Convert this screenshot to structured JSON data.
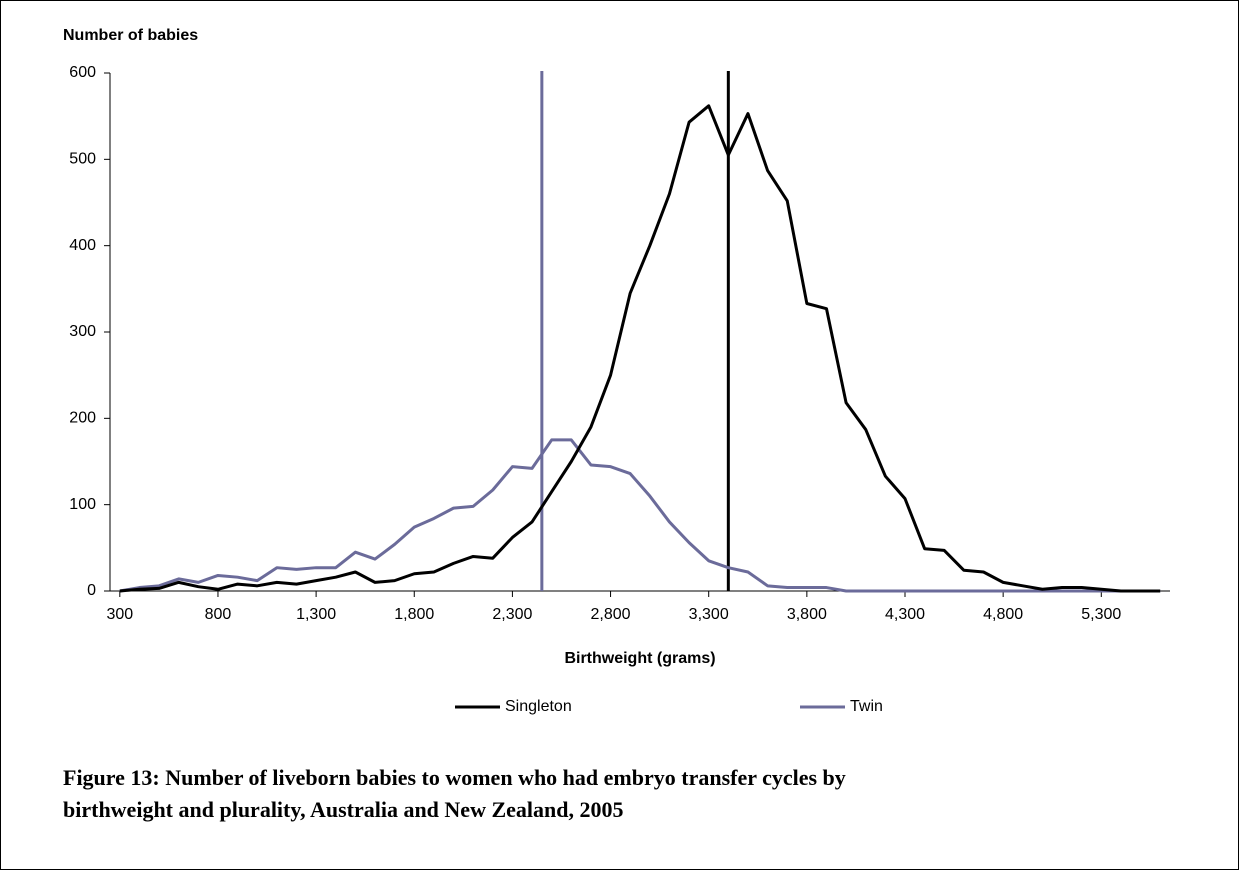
{
  "chart_data": {
    "type": "line",
    "y_label": "Number of babies",
    "x_label": "Birthweight (grams)",
    "caption": [
      "Figure 13: Number of liveborn babies to women who had embryo transfer cycles by",
      "birthweight and plurality, Australia and New Zealand, 2005"
    ],
    "x": [
      300,
      400,
      500,
      600,
      700,
      800,
      900,
      1000,
      1100,
      1200,
      1300,
      1400,
      1500,
      1600,
      1700,
      1800,
      1900,
      2000,
      2100,
      2200,
      2300,
      2400,
      2500,
      2600,
      2700,
      2800,
      2900,
      3000,
      3100,
      3200,
      3300,
      3400,
      3500,
      3600,
      3700,
      3800,
      3900,
      4000,
      4100,
      4200,
      4300,
      4400,
      4500,
      4600,
      4700,
      4800,
      4900,
      5000,
      5100,
      5200,
      5300,
      5400,
      5500,
      5600
    ],
    "series": [
      {
        "name": "Singleton",
        "color": "#000000",
        "values": [
          0,
          2,
          3,
          10,
          5,
          2,
          8,
          6,
          10,
          8,
          12,
          16,
          22,
          10,
          12,
          20,
          22,
          32,
          40,
          38,
          62,
          80,
          115,
          150,
          190,
          250,
          345,
          400,
          460,
          543,
          562,
          505,
          553,
          487,
          452,
          333,
          327,
          218,
          187,
          133,
          107,
          49,
          47,
          24,
          22,
          10,
          6,
          2,
          4,
          4,
          2,
          0,
          0,
          0
        ]
      },
      {
        "name": "Twin",
        "color": "#6b6b9a",
        "values": [
          0,
          4,
          6,
          14,
          10,
          18,
          16,
          12,
          27,
          25,
          27,
          27,
          45,
          37,
          54,
          74,
          84,
          96,
          98,
          117,
          144,
          142,
          175,
          175,
          146,
          144,
          136,
          110,
          80,
          56,
          35,
          27,
          22,
          6,
          4,
          4,
          4,
          0,
          0,
          0,
          0,
          0,
          0,
          0,
          0,
          0,
          0,
          0,
          0,
          0,
          0,
          0,
          0,
          0
        ]
      }
    ],
    "reference_lines": [
      {
        "x": 3400,
        "color": "#000000"
      },
      {
        "x": 2450,
        "color": "#6b6b9a"
      }
    ],
    "xlim": [
      250,
      5650
    ],
    "xticks": [
      300,
      800,
      {
        "value": 1300,
        "label": "1,300"
      },
      {
        "value": 1800,
        "label": "1,800"
      },
      {
        "value": 2300,
        "label": "2,300"
      },
      {
        "value": 2800,
        "label": "2,800"
      },
      {
        "value": 3300,
        "label": "3,300"
      },
      {
        "value": 3800,
        "label": "3,800"
      },
      {
        "value": 4300,
        "label": "4,300"
      },
      {
        "value": 4800,
        "label": "4,800"
      },
      {
        "value": 5300,
        "label": "5,300"
      }
    ],
    "ylim": [
      0,
      600
    ],
    "yticks": [
      0,
      100,
      200,
      300,
      400,
      500,
      600
    ],
    "grid": false
  }
}
